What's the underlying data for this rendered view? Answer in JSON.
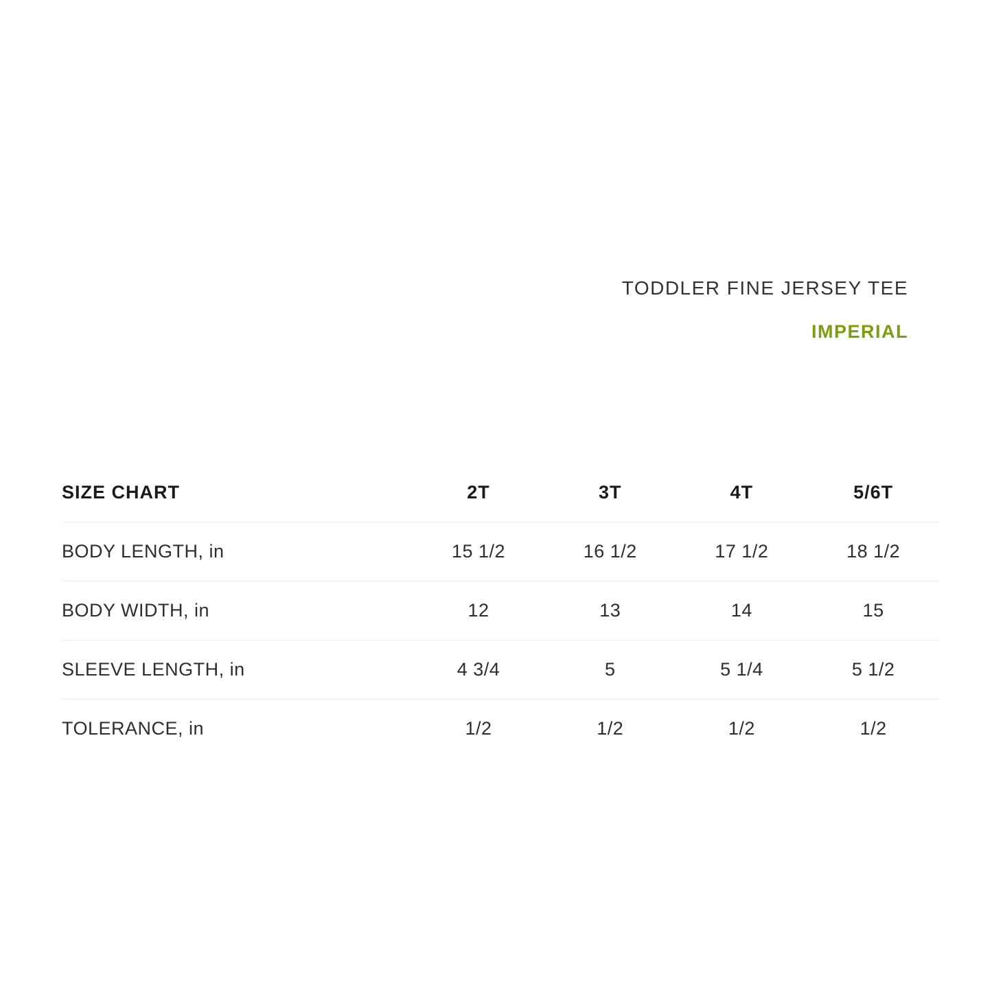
{
  "header": {
    "product_title": "TODDLER FINE JERSEY TEE",
    "unit_label": "IMPERIAL",
    "accent_color": "#7c9d0d"
  },
  "chart_data": {
    "type": "table",
    "title": "SIZE CHART",
    "unit_system": "IMPERIAL",
    "columns": [
      "2T",
      "3T",
      "4T",
      "5/6T"
    ],
    "rows": [
      {
        "label": "BODY LENGTH, in",
        "values": [
          "15 1/2",
          "16 1/2",
          "17 1/2",
          "18 1/2"
        ],
        "values_numeric": [
          15.5,
          16.5,
          17.5,
          18.5
        ]
      },
      {
        "label": "BODY WIDTH, in",
        "values": [
          "12",
          "13",
          "14",
          "15"
        ],
        "values_numeric": [
          12,
          13,
          14,
          15
        ]
      },
      {
        "label": "SLEEVE LENGTH, in",
        "values": [
          "4 3/4",
          "5",
          "5 1/4",
          "5 1/2"
        ],
        "values_numeric": [
          4.75,
          5,
          5.25,
          5.5
        ]
      },
      {
        "label": "TOLERANCE, in",
        "values": [
          "1/2",
          "1/2",
          "1/2",
          "1/2"
        ],
        "values_numeric": [
          0.5,
          0.5,
          0.5,
          0.5
        ]
      }
    ],
    "layout": {
      "grid": "horizontal-rules-only",
      "value_alignment": "center"
    }
  }
}
